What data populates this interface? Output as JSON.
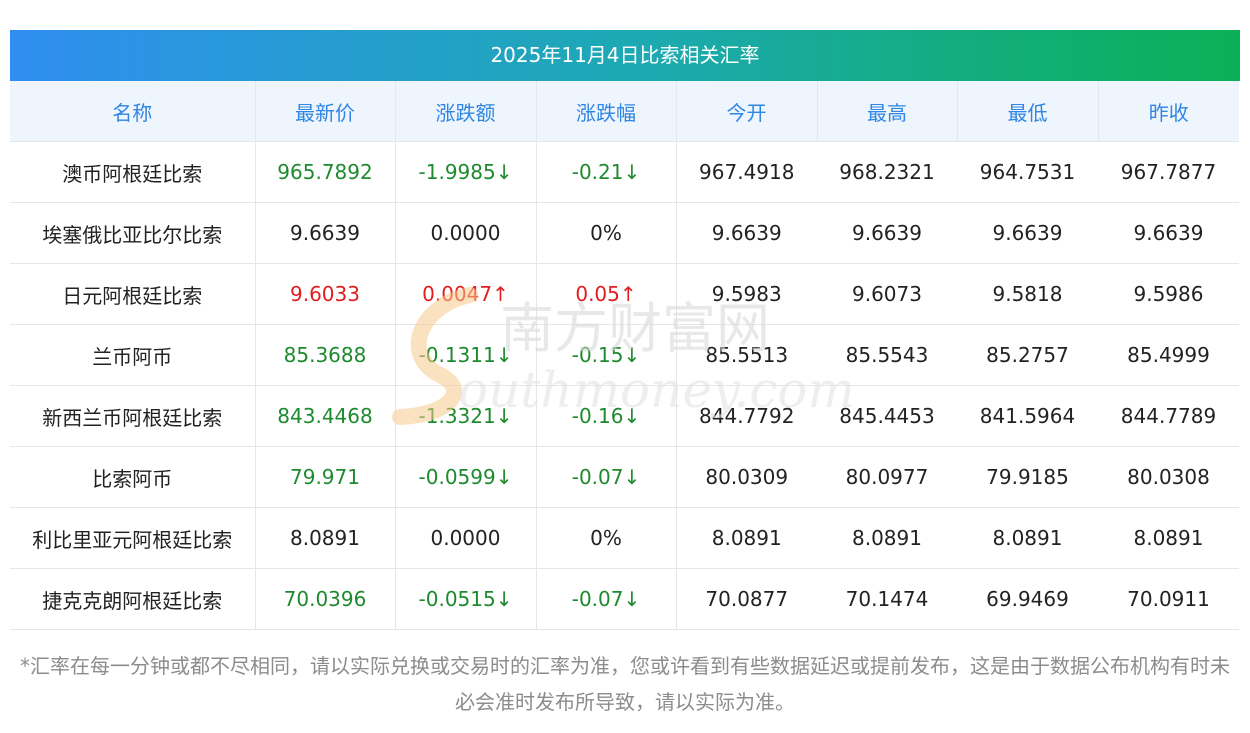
{
  "title": "2025年11月4日比索相关汇率",
  "columns": [
    "名称",
    "最新价",
    "涨跌额",
    "涨跌幅",
    "今开",
    "最高",
    "最低",
    "昨收"
  ],
  "rows": [
    {
      "name": "澳币阿根廷比索",
      "latest": "965.7892",
      "change": "-1.9985↓",
      "pct": "-0.21↓",
      "open": "967.4918",
      "high": "968.2321",
      "low": "964.7531",
      "prev": "967.7877",
      "trend": "down"
    },
    {
      "name": "埃塞俄比亚比尔比索",
      "latest": "9.6639",
      "change": "0.0000",
      "pct": "0%",
      "open": "9.6639",
      "high": "9.6639",
      "low": "9.6639",
      "prev": "9.6639",
      "trend": "flat"
    },
    {
      "name": "日元阿根廷比索",
      "latest": "9.6033",
      "change": "0.0047↑",
      "pct": "0.05↑",
      "open": "9.5983",
      "high": "9.6073",
      "low": "9.5818",
      "prev": "9.5986",
      "trend": "up"
    },
    {
      "name": "兰币阿币",
      "latest": "85.3688",
      "change": "-0.1311↓",
      "pct": "-0.15↓",
      "open": "85.5513",
      "high": "85.5543",
      "low": "85.2757",
      "prev": "85.4999",
      "trend": "down"
    },
    {
      "name": "新西兰币阿根廷比索",
      "latest": "843.4468",
      "change": "-1.3321↓",
      "pct": "-0.16↓",
      "open": "844.7792",
      "high": "845.4453",
      "low": "841.5964",
      "prev": "844.7789",
      "trend": "down"
    },
    {
      "name": "比索阿币",
      "latest": "79.971",
      "change": "-0.0599↓",
      "pct": "-0.07↓",
      "open": "80.0309",
      "high": "80.0977",
      "low": "79.9185",
      "prev": "80.0308",
      "trend": "down"
    },
    {
      "name": "利比里亚元阿根廷比索",
      "latest": "8.0891",
      "change": "0.0000",
      "pct": "0%",
      "open": "8.0891",
      "high": "8.0891",
      "low": "8.0891",
      "prev": "8.0891",
      "trend": "flat"
    },
    {
      "name": "捷克克朗阿根廷比索",
      "latest": "70.0396",
      "change": "-0.0515↓",
      "pct": "-0.07↓",
      "open": "70.0877",
      "high": "70.1474",
      "low": "69.9469",
      "prev": "70.0911",
      "trend": "down"
    }
  ],
  "watermark": {
    "cn": "南方财富网",
    "en": "outhmoney.com"
  },
  "note": "*汇率在每一分钟或都不尽相同，请以实际兑换或交易时的汇率为准，您或许看到有些数据延迟或提前发布，这是由于数据公布机构有时未必会准时发布所导致，请以实际为准。",
  "colors": {
    "up": "#e31d1d",
    "down": "#1e8a2e",
    "header_text": "#2f86e4",
    "title_gradient_start": "#2f8ef0",
    "title_gradient_end": "#0bb055"
  }
}
